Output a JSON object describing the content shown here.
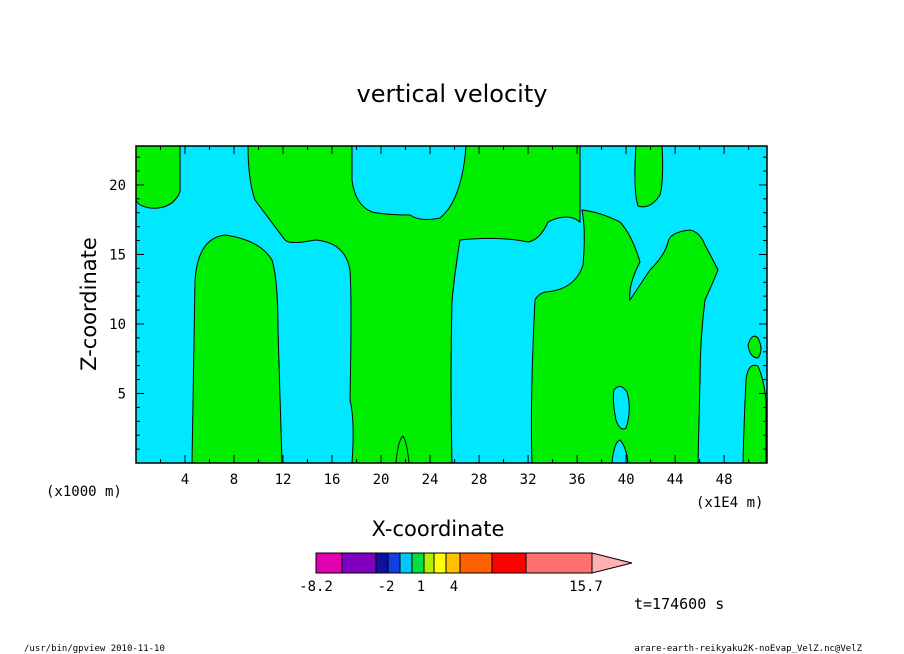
{
  "chart_data": {
    "type": "heatmap",
    "title": "vertical velocity",
    "xlabel": "X-coordinate",
    "ylabel": "Z-coordinate",
    "x_unit_left": "(x1000 m)",
    "x_unit_right": "(x1E4 m)",
    "xlim": [
      0,
      51.5
    ],
    "ylim": [
      0,
      22.8
    ],
    "xticks": [
      4,
      8,
      12,
      16,
      20,
      24,
      28,
      32,
      36,
      40,
      44,
      48
    ],
    "yticks": [
      5,
      10,
      15,
      20
    ],
    "time_label": "t=174600 s",
    "colorbar": {
      "colors": [
        "#e000b0",
        "#8000c0",
        "#1010a0",
        "#1040e0",
        "#00c8ff",
        "#00e040",
        "#b0f000",
        "#ffff00",
        "#ffc000",
        "#ff6000",
        "#ff0000",
        "#ff7070",
        "#ffb0b0"
      ],
      "tick_labels": [
        "-8.2",
        "-2",
        "1",
        "4",
        "15.7"
      ]
    },
    "regions": {
      "background_color": "#00e8ff",
      "region_color": "#00ee00",
      "region_value_range": [
        0,
        1
      ],
      "background_value_range": [
        -2,
        0
      ]
    }
  },
  "footer": {
    "left": "/usr/bin/gpview  2010-11-10",
    "right": "arare-earth-reikyaku2K-noEvap_VelZ.nc@VelZ"
  }
}
